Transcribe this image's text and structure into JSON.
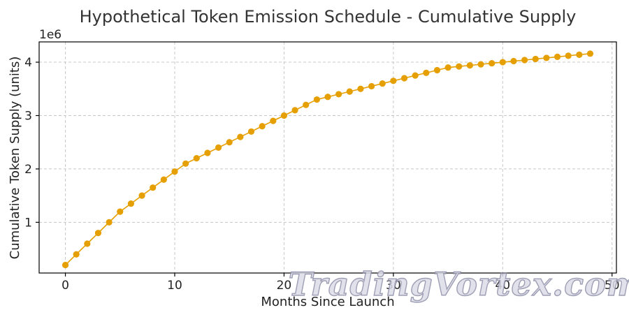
{
  "chart_data": {
    "type": "line",
    "title": "Hypothetical Token Emission Schedule - Cumulative Supply",
    "xlabel": "Months Since Launch",
    "ylabel": "Cumulative Token Supply (units)",
    "y_offset_label": "1e6",
    "xlim": [
      -2.4,
      50.4
    ],
    "ylim": [
      0.05,
      4.38
    ],
    "x_ticks": [
      0,
      10,
      20,
      30,
      40,
      50
    ],
    "x_tick_labels": [
      "0",
      "10",
      "20",
      "30",
      "40",
      "50"
    ],
    "y_ticks": [
      1,
      2,
      3,
      4
    ],
    "y_tick_labels": [
      "1",
      "2",
      "3",
      "4"
    ],
    "grid": true,
    "series": [
      {
        "color": "#E69F00",
        "marker": "circle",
        "x": [
          0,
          1,
          2,
          3,
          4,
          5,
          6,
          7,
          8,
          9,
          10,
          11,
          12,
          13,
          14,
          15,
          16,
          17,
          18,
          19,
          20,
          21,
          22,
          23,
          24,
          25,
          26,
          27,
          28,
          29,
          30,
          31,
          32,
          33,
          34,
          35,
          36,
          37,
          38,
          39,
          40,
          41,
          42,
          43,
          44,
          45,
          46,
          47,
          48
        ],
        "values": [
          0.2,
          0.4,
          0.6,
          0.8,
          1.0,
          1.2,
          1.35,
          1.5,
          1.65,
          1.8,
          1.95,
          2.1,
          2.2,
          2.3,
          2.4,
          2.5,
          2.6,
          2.7,
          2.8,
          2.9,
          3.0,
          3.1,
          3.2,
          3.3,
          3.35,
          3.4,
          3.45,
          3.5,
          3.55,
          3.6,
          3.65,
          3.7,
          3.75,
          3.8,
          3.85,
          3.9,
          3.92,
          3.94,
          3.96,
          3.98,
          4.0,
          4.02,
          4.04,
          4.06,
          4.08,
          4.1,
          4.12,
          4.14,
          4.16
        ]
      }
    ]
  },
  "watermark": "TradingVortex.com"
}
